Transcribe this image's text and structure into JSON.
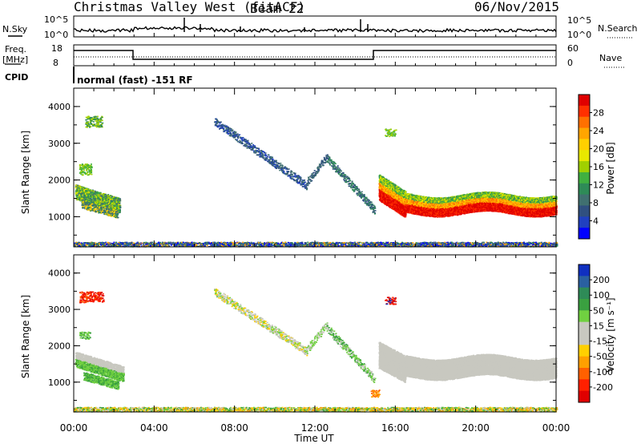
{
  "header": {
    "title": "Christmas Valley West (fitACF)",
    "beam": "Beam 22",
    "date": "06/Nov/2015"
  },
  "top_panels": {
    "nsky_label": "N.Sky",
    "nsearch_label": "N.Search",
    "left_ticks": [
      "10^5",
      "10^0"
    ],
    "right_ticks": [
      "10^5",
      "10^0"
    ],
    "freq_label_line1": "Freq.",
    "freq_label_line2": "[MHz]",
    "freq_ticks": [
      "18",
      "8"
    ],
    "nave_label": "Nave",
    "nave_ticks": [
      "60",
      "0"
    ],
    "cpid_label": "CPID",
    "cpid_text": "normal (fast) -151 RF"
  },
  "chart_data": [
    {
      "type": "heatmap",
      "name": "power-panel",
      "ylabel": "Slant Range [km]",
      "xlabel": "",
      "x_ticks": [
        "00:00",
        "04:00",
        "08:00",
        "12:00",
        "16:00",
        "20:00",
        "00:00"
      ],
      "y_ticks": [
        "1000",
        "2000",
        "3000",
        "4000"
      ],
      "xlim_hours": [
        0,
        24
      ],
      "ylim_km": [
        180,
        4500
      ],
      "colorbar": {
        "label": "Power [dB]",
        "ticks": [
          "28",
          "24",
          "20",
          "16",
          "12",
          "8",
          "4"
        ],
        "colors": [
          "#e00000",
          "#ff3000",
          "#ff7000",
          "#ffa500",
          "#ffd000",
          "#e8e800",
          "#a0d000",
          "#40b040",
          "#2e8b57",
          "#407070",
          "#305080",
          "#2040c0",
          "#0000ff"
        ]
      }
    },
    {
      "type": "heatmap",
      "name": "velocity-panel",
      "ylabel": "Slant Range [km]",
      "xlabel": "Time UT",
      "x_ticks": [
        "00:00",
        "04:00",
        "08:00",
        "12:00",
        "16:00",
        "20:00",
        "00:00"
      ],
      "y_ticks": [
        "1000",
        "2000",
        "3000",
        "4000"
      ],
      "xlim_hours": [
        0,
        24
      ],
      "ylim_km": [
        180,
        4500
      ],
      "colorbar": {
        "label": "Velocity [m s⁻¹]",
        "ticks": [
          "200",
          "100",
          "50",
          "15",
          "-15",
          "-50",
          "-100",
          "-200"
        ],
        "colors": [
          "#1030c0",
          "#2a60a0",
          "#2e8b57",
          "#3aa040",
          "#70d040",
          "#c8c8c0",
          "#c8c8c0",
          "#ffd000",
          "#ffa000",
          "#ff6000",
          "#ff2000",
          "#e00000"
        ]
      }
    }
  ],
  "colors": {
    "ground_scatter": "#c8c8c0",
    "axis": "#000000"
  }
}
